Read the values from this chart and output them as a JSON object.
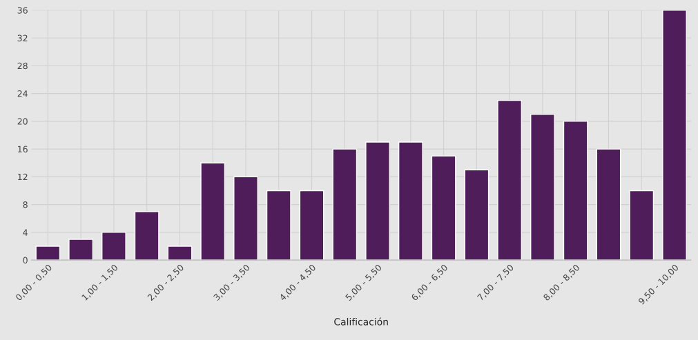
{
  "chart_data": {
    "type": "bar",
    "xlabel": "Calificación",
    "categories": [
      "0,00 - 0,50",
      null,
      "1,00 - 1,50",
      null,
      "2,00 - 2,50",
      null,
      "3,00 - 3,50",
      null,
      "4,00 - 4,50",
      null,
      "5,00 - 5,50",
      null,
      "6,00 - 6,50",
      null,
      "7,00 - 7,50",
      null,
      "8,00 - 8,50",
      null,
      null,
      "9,50 - 10,00"
    ],
    "values": [
      2,
      3,
      4,
      7,
      2,
      14,
      12,
      10,
      10,
      16,
      17,
      17,
      15,
      13,
      23,
      21,
      20,
      16,
      10,
      36
    ],
    "color": "#4e1d5a",
    "ylim": [
      0,
      36
    ],
    "yticks": [
      0,
      4,
      8,
      12,
      16,
      20,
      24,
      28,
      32,
      36
    ],
    "grid": true
  }
}
